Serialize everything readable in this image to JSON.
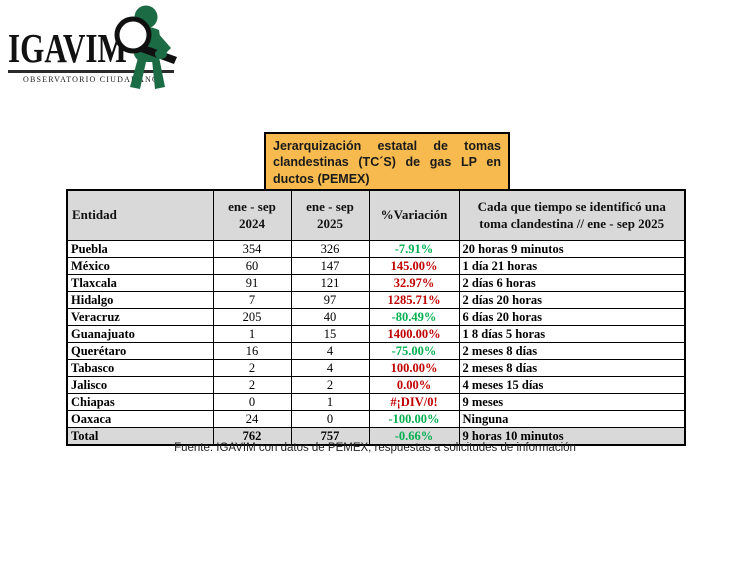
{
  "logo": {
    "title": "IGAVIM",
    "subtitle": "OBSERVATORIO CIUDADANO"
  },
  "title_box": {
    "text": "Jerarquización estatal de tomas clandestinas (TC´S) de gas LP en ductos (PEMEX)"
  },
  "table": {
    "columns": [
      "Entidad",
      "ene - sep 2024",
      "ene - sep 2025",
      "%Variación",
      "Cada que tiempo se identificó una toma clandestina // ene - sep 2025"
    ],
    "rows": [
      {
        "entidad": "Puebla",
        "y2024": "354",
        "y2025": "326",
        "variacion": "-7.91%",
        "trend": "down",
        "tiempo": "20 horas 9 minutos"
      },
      {
        "entidad": "México",
        "y2024": "60",
        "y2025": "147",
        "variacion": "145.00%",
        "trend": "up",
        "tiempo": "1 día 21 horas"
      },
      {
        "entidad": "Tlaxcala",
        "y2024": "91",
        "y2025": "121",
        "variacion": "32.97%",
        "trend": "up",
        "tiempo": "2 días 6 horas"
      },
      {
        "entidad": "Hidalgo",
        "y2024": "7",
        "y2025": "97",
        "variacion": "1285.71%",
        "trend": "up",
        "tiempo": "2 días 20 horas"
      },
      {
        "entidad": "Veracruz",
        "y2024": "205",
        "y2025": "40",
        "variacion": "-80.49%",
        "trend": "down",
        "tiempo": "6 días 20 horas"
      },
      {
        "entidad": "Guanajuato",
        "y2024": "1",
        "y2025": "15",
        "variacion": "1400.00%",
        "trend": "up",
        "tiempo": "1 8 días 5 horas"
      },
      {
        "entidad": "Querétaro",
        "y2024": "16",
        "y2025": "4",
        "variacion": "-75.00%",
        "trend": "down",
        "tiempo": "2 meses 8 días"
      },
      {
        "entidad": "Tabasco",
        "y2024": "2",
        "y2025": "4",
        "variacion": "100.00%",
        "trend": "up",
        "tiempo": "2 meses 8 días"
      },
      {
        "entidad": "Jalisco",
        "y2024": "2",
        "y2025": "2",
        "variacion": "0.00%",
        "trend": "up",
        "tiempo": "4 meses 15 días"
      },
      {
        "entidad": "Chiapas",
        "y2024": "0",
        "y2025": "1",
        "variacion": "#¡DIV/0!",
        "trend": "up",
        "tiempo": "9 meses"
      },
      {
        "entidad": "Oaxaca",
        "y2024": "24",
        "y2025": "0",
        "variacion": "-100.00%",
        "trend": "down",
        "tiempo": "Ninguna"
      }
    ],
    "total": {
      "entidad": "Total",
      "y2024": "762",
      "y2025": "757",
      "variacion": "-0.66%",
      "trend": "down",
      "tiempo": "9 horas 10 minutos"
    }
  },
  "footer": {
    "source": "Fuente: IGAVIM con datos de PEMEX, respuestas a solicitudes de información"
  },
  "colors": {
    "increase_red": "#C00000",
    "decrease_green": "#00B050",
    "header_bg": "#D9D9D9",
    "title_box_bg": "#F6BA4E",
    "logo_green": "#1B6B45"
  },
  "chart_data": {
    "type": "table",
    "title": "Jerarquización estatal de tomas clandestinas (TC´S) de gas LP en ductos (PEMEX)",
    "categories": [
      "Puebla",
      "México",
      "Tlaxcala",
      "Hidalgo",
      "Veracruz",
      "Guanajuato",
      "Querétaro",
      "Tabasco",
      "Jalisco",
      "Chiapas",
      "Oaxaca",
      "Total"
    ],
    "series": [
      {
        "name": "ene - sep 2024",
        "values": [
          354,
          60,
          91,
          7,
          205,
          1,
          16,
          2,
          2,
          0,
          24,
          762
        ]
      },
      {
        "name": "ene - sep 2025",
        "values": [
          326,
          147,
          121,
          97,
          40,
          15,
          4,
          4,
          2,
          1,
          0,
          757
        ]
      },
      {
        "name": "%Variación",
        "values": [
          "-7.91%",
          "145.00%",
          "32.97%",
          "1285.71%",
          "-80.49%",
          "1400.00%",
          "-75.00%",
          "100.00%",
          "0.00%",
          "#¡DIV/0!",
          "-100.00%",
          "-0.66%"
        ]
      },
      {
        "name": "Cada que tiempo se identificó una toma clandestina // ene - sep 2025",
        "values": [
          "20 horas 9 minutos",
          "1 día 21 horas",
          "2 días 6 horas",
          "2 días 20 horas",
          "6 días 20 horas",
          "1 8 días 5 horas",
          "2 meses 8 días",
          "2 meses 8 días",
          "4 meses 15 días",
          "9 meses",
          "Ninguna",
          "9 horas 10 minutos"
        ]
      }
    ]
  }
}
